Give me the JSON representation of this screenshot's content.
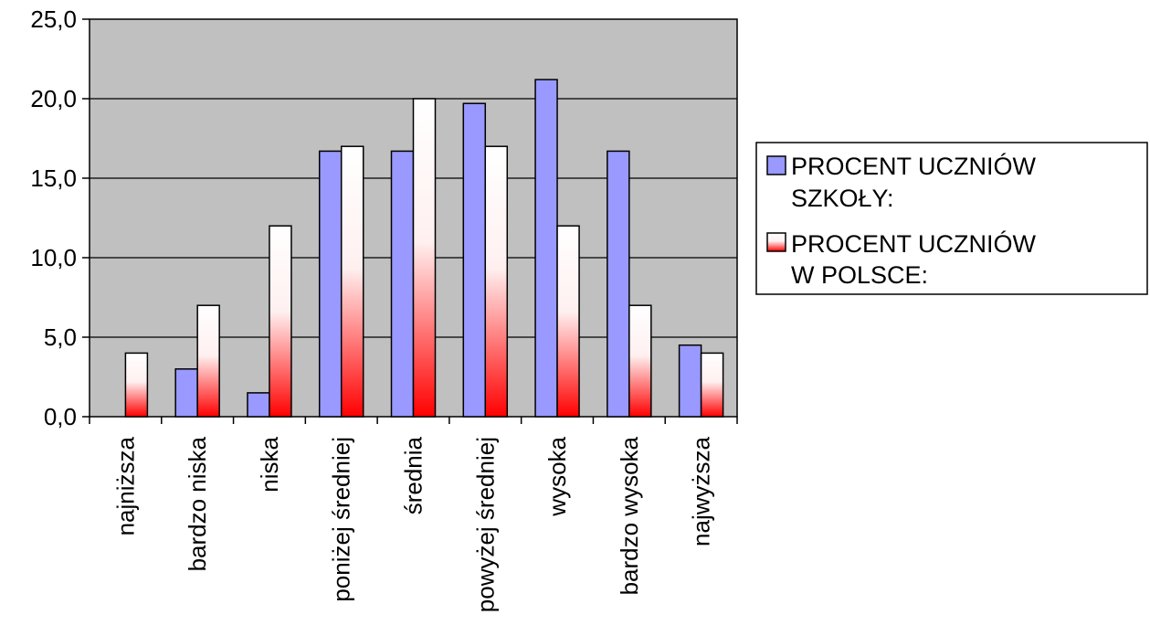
{
  "chart_data": {
    "type": "bar",
    "title": "",
    "xlabel": "",
    "ylabel": "",
    "ylim": [
      0,
      25
    ],
    "yticks": [
      0,
      5,
      10,
      15,
      20,
      25
    ],
    "ytick_labels": [
      "0,0",
      "5,0",
      "10,0",
      "15,0",
      "20,0",
      "25,0"
    ],
    "grid": true,
    "legend_position": "right",
    "categories": [
      "najniższa",
      "bardzo niska",
      "niska",
      "poniżej średniej",
      "średnia",
      "powyżej średniej",
      "wysoka",
      "bardzo wysoka",
      "najwyższa"
    ],
    "series": [
      {
        "name": "PROCENT UCZNIÓW SZKOŁY:",
        "legend_lines": [
          "PROCENT UCZNIÓW",
          "SZKOŁY:"
        ],
        "color": "#9999ff",
        "values": [
          0,
          3.0,
          1.5,
          16.7,
          16.7,
          19.7,
          21.2,
          16.7,
          4.5
        ]
      },
      {
        "name": "PROCENT UCZNIÓW W POLSCE:",
        "legend_lines": [
          "PROCENT UCZNIÓW",
          "W POLSCE:"
        ],
        "color": "#ff0000",
        "values": [
          4,
          7,
          12,
          17,
          20,
          17,
          12,
          7,
          4
        ]
      }
    ],
    "colors": {
      "plot_background": "#c0c0c0",
      "series1": "#9999ff",
      "series2_top": "#ffffff",
      "series2_bottom": "#ff0000"
    }
  }
}
